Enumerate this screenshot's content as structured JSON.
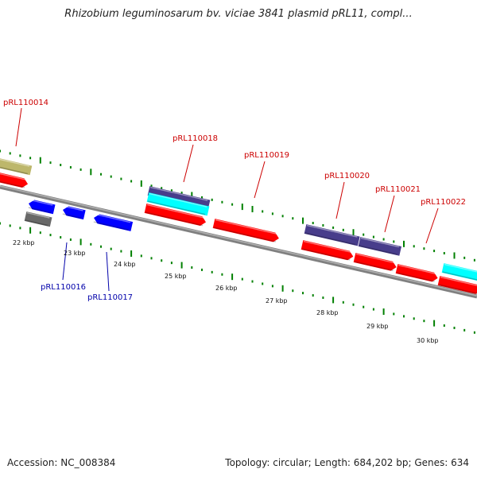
{
  "title": "Rhizobium leguminosarum bv. viciae 3841 plasmid pRL11, compl...",
  "footer": {
    "accession": "Accession: NC_008384",
    "summary": "Topology: circular; Length: 684,202 bp; Genes: 634"
  },
  "colors": {
    "forward_gene": "#ff0000",
    "reverse_gene": "#0000ff",
    "pseudo_gene": "#696969",
    "olive_feature": "#bdb76b",
    "violet_feature": "#483d8b",
    "cyan_feature": "#00ffff",
    "tick": "#008000",
    "backbone": "#808080",
    "forward_label": "#cc0000",
    "reverse_label": "#0000aa"
  },
  "scale": {
    "unit": "kbp",
    "ticks": [
      "22 kbp",
      "23 kbp",
      "24 kbp",
      "25 kbp",
      "26 kbp",
      "27 kbp",
      "28 kbp",
      "29 kbp",
      "30 kbp"
    ]
  },
  "gene_labels": {
    "forward": [
      "pRL110014",
      "pRL110018",
      "pRL110019",
      "pRL110020",
      "pRL110021",
      "pRL110022"
    ],
    "reverse": [
      "pRL110016",
      "pRL110017"
    ]
  }
}
